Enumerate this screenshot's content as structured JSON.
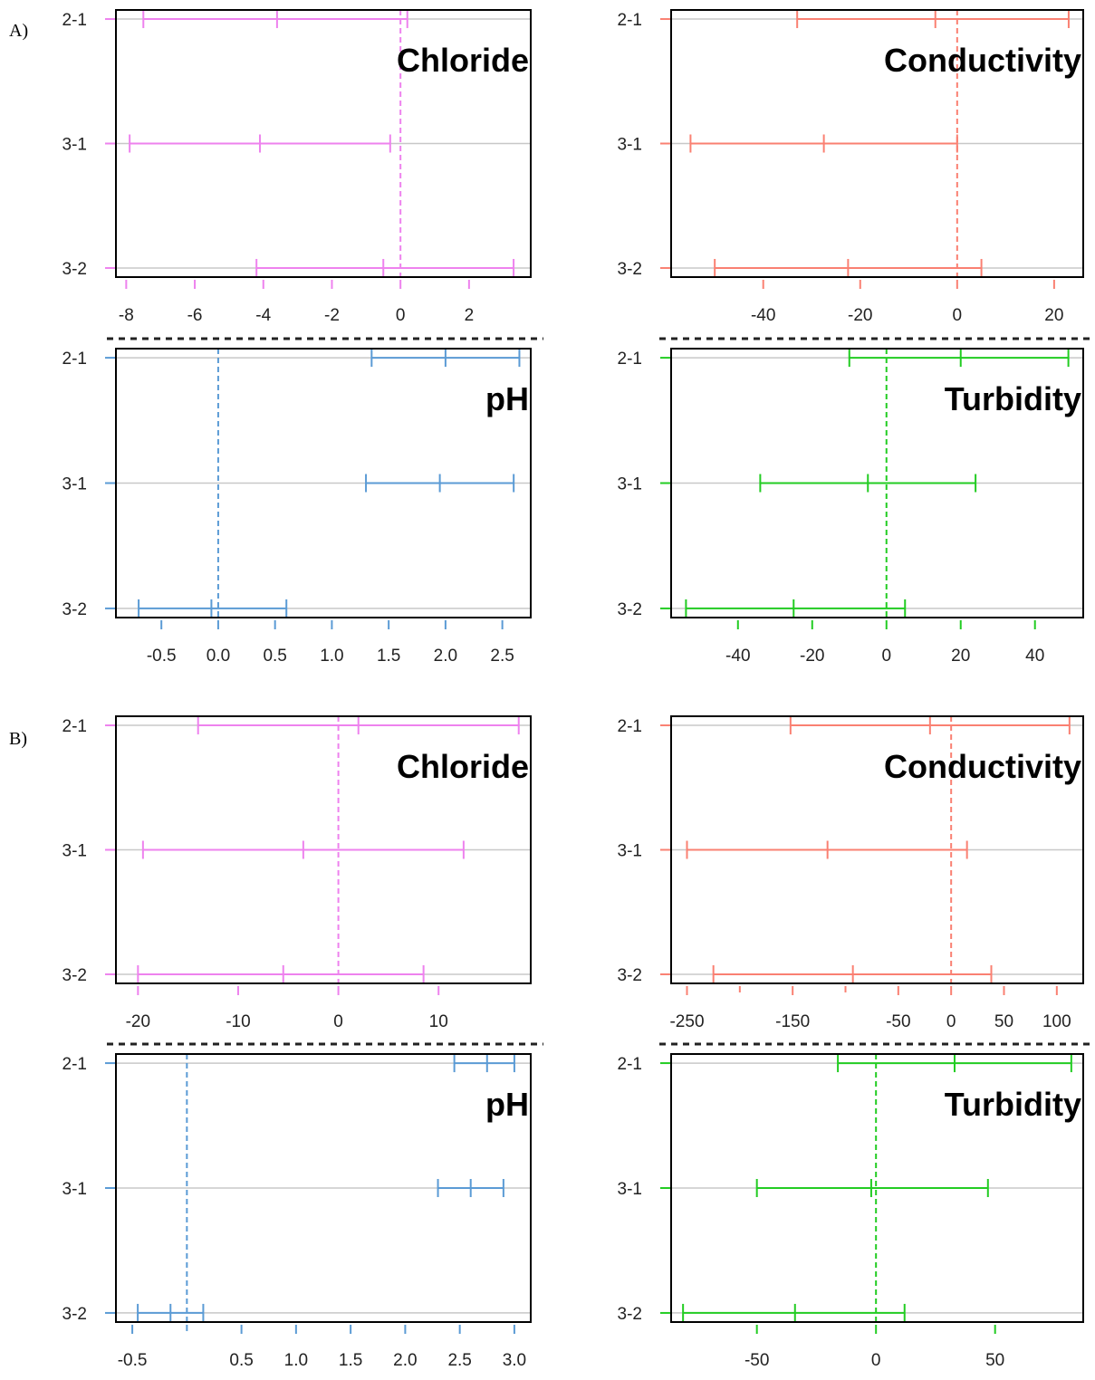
{
  "sections": [
    {
      "label": "A)",
      "panels": [
        {
          "title": "Chloride",
          "color": "#EE82EE",
          "xticks": [
            -8,
            -6,
            -4,
            -2,
            0,
            2
          ],
          "xlim": [
            -8.3,
            3.8
          ],
          "intervals": [
            {
              "group": "2-1",
              "lwr": -7.5,
              "mid": -3.6,
              "upr": 0.2
            },
            {
              "group": "3-1",
              "lwr": -7.9,
              "mid": -4.1,
              "upr": -0.3
            },
            {
              "group": "3-2",
              "lwr": -4.2,
              "mid": -0.5,
              "upr": 3.3
            }
          ]
        },
        {
          "title": "Conductivity",
          "color": "#FA8072",
          "xticks": [
            -40,
            -20,
            0,
            20
          ],
          "xlim": [
            -59,
            26
          ],
          "intervals": [
            {
              "group": "2-1",
              "lwr": -33,
              "mid": -4.5,
              "upr": 23
            },
            {
              "group": "3-1",
              "lwr": -55,
              "mid": -27.5,
              "upr": 0
            },
            {
              "group": "3-2",
              "lwr": -50,
              "mid": -22.5,
              "upr": 5
            }
          ]
        },
        {
          "title": "pH",
          "color": "#5B9BD5",
          "xticks": [
            -0.5,
            0.0,
            0.5,
            1.0,
            1.5,
            2.0,
            2.5
          ],
          "xticks_fmt": 1,
          "xlim": [
            -0.9,
            2.75
          ],
          "intervals": [
            {
              "group": "2-1",
              "lwr": 1.35,
              "mid": 2.0,
              "upr": 2.65
            },
            {
              "group": "3-1",
              "lwr": 1.3,
              "mid": 1.95,
              "upr": 2.6
            },
            {
              "group": "3-2",
              "lwr": -0.7,
              "mid": -0.06,
              "upr": 0.6
            }
          ]
        },
        {
          "title": "Turbidity",
          "color": "#22CC22",
          "xticks": [
            -40,
            -20,
            0,
            20,
            40
          ],
          "xlim": [
            -58,
            53
          ],
          "intervals": [
            {
              "group": "2-1",
              "lwr": -10,
              "mid": 20,
              "upr": 49
            },
            {
              "group": "3-1",
              "lwr": -34,
              "mid": -5,
              "upr": 24
            },
            {
              "group": "3-2",
              "lwr": -54,
              "mid": -25,
              "upr": 5
            }
          ]
        }
      ]
    },
    {
      "label": "B)",
      "panels": [
        {
          "title": "Chloride",
          "color": "#EE82EE",
          "xticks": [
            -20,
            -10,
            0,
            10
          ],
          "xlim": [
            -22.2,
            19.2
          ],
          "intervals": [
            {
              "group": "2-1",
              "lwr": -14,
              "mid": 2,
              "upr": 18
            },
            {
              "group": "3-1",
              "lwr": -19.5,
              "mid": -3.5,
              "upr": 12.5
            },
            {
              "group": "3-2",
              "lwr": -20,
              "mid": -5.5,
              "upr": 8.5
            }
          ]
        },
        {
          "title": "Conductivity",
          "color": "#FA8072",
          "xticks": [
            -250,
            -150,
            -50,
            0,
            50,
            100
          ],
          "minor_xticks": [
            -200,
            -100
          ],
          "xlim": [
            -265,
            125
          ],
          "intervals": [
            {
              "group": "2-1",
              "lwr": -152,
              "mid": -20,
              "upr": 112
            },
            {
              "group": "3-1",
              "lwr": -250,
              "mid": -117,
              "upr": 15
            },
            {
              "group": "3-2",
              "lwr": -225,
              "mid": -93,
              "upr": 38
            }
          ]
        },
        {
          "title": "pH",
          "color": "#5B9BD5",
          "xticks": [
            -0.5,
            0.5,
            1.0,
            1.5,
            2.0,
            2.5,
            3.0
          ],
          "xticks_fmt": 1,
          "minor_xticks": [
            0.0
          ],
          "xlim": [
            -0.65,
            3.15
          ],
          "intervals": [
            {
              "group": "2-1",
              "lwr": 2.45,
              "mid": 2.75,
              "upr": 3.0
            },
            {
              "group": "3-1",
              "lwr": 2.3,
              "mid": 2.6,
              "upr": 2.9
            },
            {
              "group": "3-2",
              "lwr": -0.45,
              "mid": -0.15,
              "upr": 0.15
            }
          ]
        },
        {
          "title": "Turbidity",
          "color": "#22CC22",
          "xticks": [
            -50,
            0,
            50
          ],
          "xlim": [
            -86,
            87
          ],
          "intervals": [
            {
              "group": "2-1",
              "lwr": -16,
              "mid": 33,
              "upr": 82
            },
            {
              "group": "3-1",
              "lwr": -50,
              "mid": -2,
              "upr": 47
            },
            {
              "group": "3-2",
              "lwr": -81,
              "mid": -34,
              "upr": 12
            }
          ]
        }
      ]
    }
  ],
  "chart_data": [
    {
      "type": "errorbar",
      "section": "A",
      "title": "Chloride",
      "categories": [
        "2-1",
        "3-1",
        "3-2"
      ],
      "lwr": [
        -7.5,
        -7.9,
        -4.2
      ],
      "diff": [
        -3.6,
        -4.1,
        -0.5
      ],
      "upr": [
        0.2,
        -0.3,
        3.3
      ],
      "reference_line": 0
    },
    {
      "type": "errorbar",
      "section": "A",
      "title": "Conductivity",
      "categories": [
        "2-1",
        "3-1",
        "3-2"
      ],
      "lwr": [
        -33,
        -55,
        -50
      ],
      "diff": [
        -4.5,
        -27.5,
        -22.5
      ],
      "upr": [
        23,
        0,
        5
      ],
      "reference_line": 0
    },
    {
      "type": "errorbar",
      "section": "A",
      "title": "pH",
      "categories": [
        "2-1",
        "3-1",
        "3-2"
      ],
      "lwr": [
        1.35,
        1.3,
        -0.7
      ],
      "diff": [
        2.0,
        1.95,
        -0.06
      ],
      "upr": [
        2.65,
        2.6,
        0.6
      ],
      "reference_line": 0
    },
    {
      "type": "errorbar",
      "section": "A",
      "title": "Turbidity",
      "categories": [
        "2-1",
        "3-1",
        "3-2"
      ],
      "lwr": [
        -10,
        -34,
        -54
      ],
      "diff": [
        20,
        -5,
        -25
      ],
      "upr": [
        49,
        24,
        5
      ],
      "reference_line": 0
    },
    {
      "type": "errorbar",
      "section": "B",
      "title": "Chloride",
      "categories": [
        "2-1",
        "3-1",
        "3-2"
      ],
      "lwr": [
        -14,
        -19.5,
        -20
      ],
      "diff": [
        2,
        -3.5,
        -5.5
      ],
      "upr": [
        18,
        12.5,
        8.5
      ],
      "reference_line": 0
    },
    {
      "type": "errorbar",
      "section": "B",
      "title": "Conductivity",
      "categories": [
        "2-1",
        "3-1",
        "3-2"
      ],
      "lwr": [
        -152,
        -250,
        -225
      ],
      "diff": [
        -20,
        -117,
        -93
      ],
      "upr": [
        112,
        15,
        38
      ],
      "reference_line": 0
    },
    {
      "type": "errorbar",
      "section": "B",
      "title": "pH",
      "categories": [
        "2-1",
        "3-1",
        "3-2"
      ],
      "lwr": [
        2.45,
        2.3,
        -0.45
      ],
      "diff": [
        2.75,
        2.6,
        -0.15
      ],
      "upr": [
        3.0,
        2.9,
        0.15
      ],
      "reference_line": 0
    },
    {
      "type": "errorbar",
      "section": "B",
      "title": "Turbidity",
      "categories": [
        "2-1",
        "3-1",
        "3-2"
      ],
      "lwr": [
        -16,
        -50,
        -81
      ],
      "diff": [
        33,
        -2,
        -34
      ],
      "upr": [
        82,
        47,
        12
      ],
      "reference_line": 0
    }
  ]
}
